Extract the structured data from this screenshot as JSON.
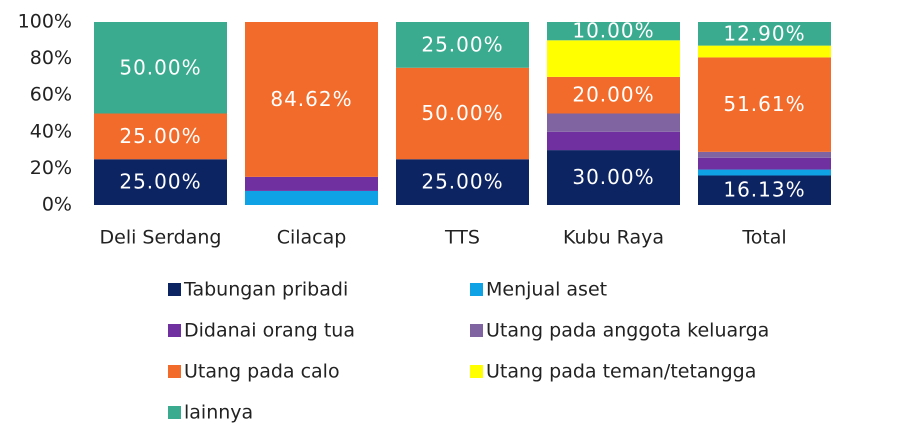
{
  "chart_data": {
    "type": "stacked_bar",
    "categories": [
      "Deli Serdang",
      "Cilacap",
      "TTS",
      "Kubu Raya",
      "Total"
    ],
    "series": [
      {
        "name": "Tabungan pribadi",
        "color": "#0d2463",
        "values": [
          25,
          0,
          25,
          30,
          16.13
        ],
        "value_labels": [
          "25.00%",
          null,
          "25.00%",
          "30.00%",
          "16.13%"
        ]
      },
      {
        "name": "Menjual aset",
        "color": "#0fa3e6",
        "values": [
          0,
          7.69,
          0,
          0,
          3.23
        ]
      },
      {
        "name": "Didanai orang tua",
        "color": "#7030a0",
        "values": [
          0,
          7.69,
          0,
          10,
          6.45
        ]
      },
      {
        "name": "Utang pada anggota keluarga",
        "color": "#8064a2",
        "values": [
          0,
          0,
          0,
          10,
          3.23
        ]
      },
      {
        "name": "Utang pada calo",
        "color": "#f26b2a",
        "values": [
          25,
          84.62,
          50,
          20,
          51.61
        ],
        "value_labels": [
          "25.00%",
          "84.62%",
          "50.00%",
          "20.00%",
          "51.61%"
        ]
      },
      {
        "name": "Utang pada teman/tetangga",
        "color": "#ffff00",
        "values": [
          0,
          0,
          0,
          20,
          6.45
        ]
      },
      {
        "name": "lainnya",
        "color": "#3aab8f",
        "values": [
          50,
          0,
          25,
          10,
          12.9
        ],
        "value_labels": [
          "50.00%",
          null,
          "25.00%",
          "10.00%",
          "12.90%"
        ]
      }
    ],
    "ylim": [
      0,
      100
    ],
    "yticks": [
      {
        "value": 0,
        "label": "0%"
      },
      {
        "value": 20,
        "label": "20%"
      },
      {
        "value": 40,
        "label": "40%"
      },
      {
        "value": 60,
        "label": "60%"
      },
      {
        "value": 80,
        "label": "80%"
      },
      {
        "value": 100,
        "label": "100%"
      }
    ],
    "grid": false
  }
}
